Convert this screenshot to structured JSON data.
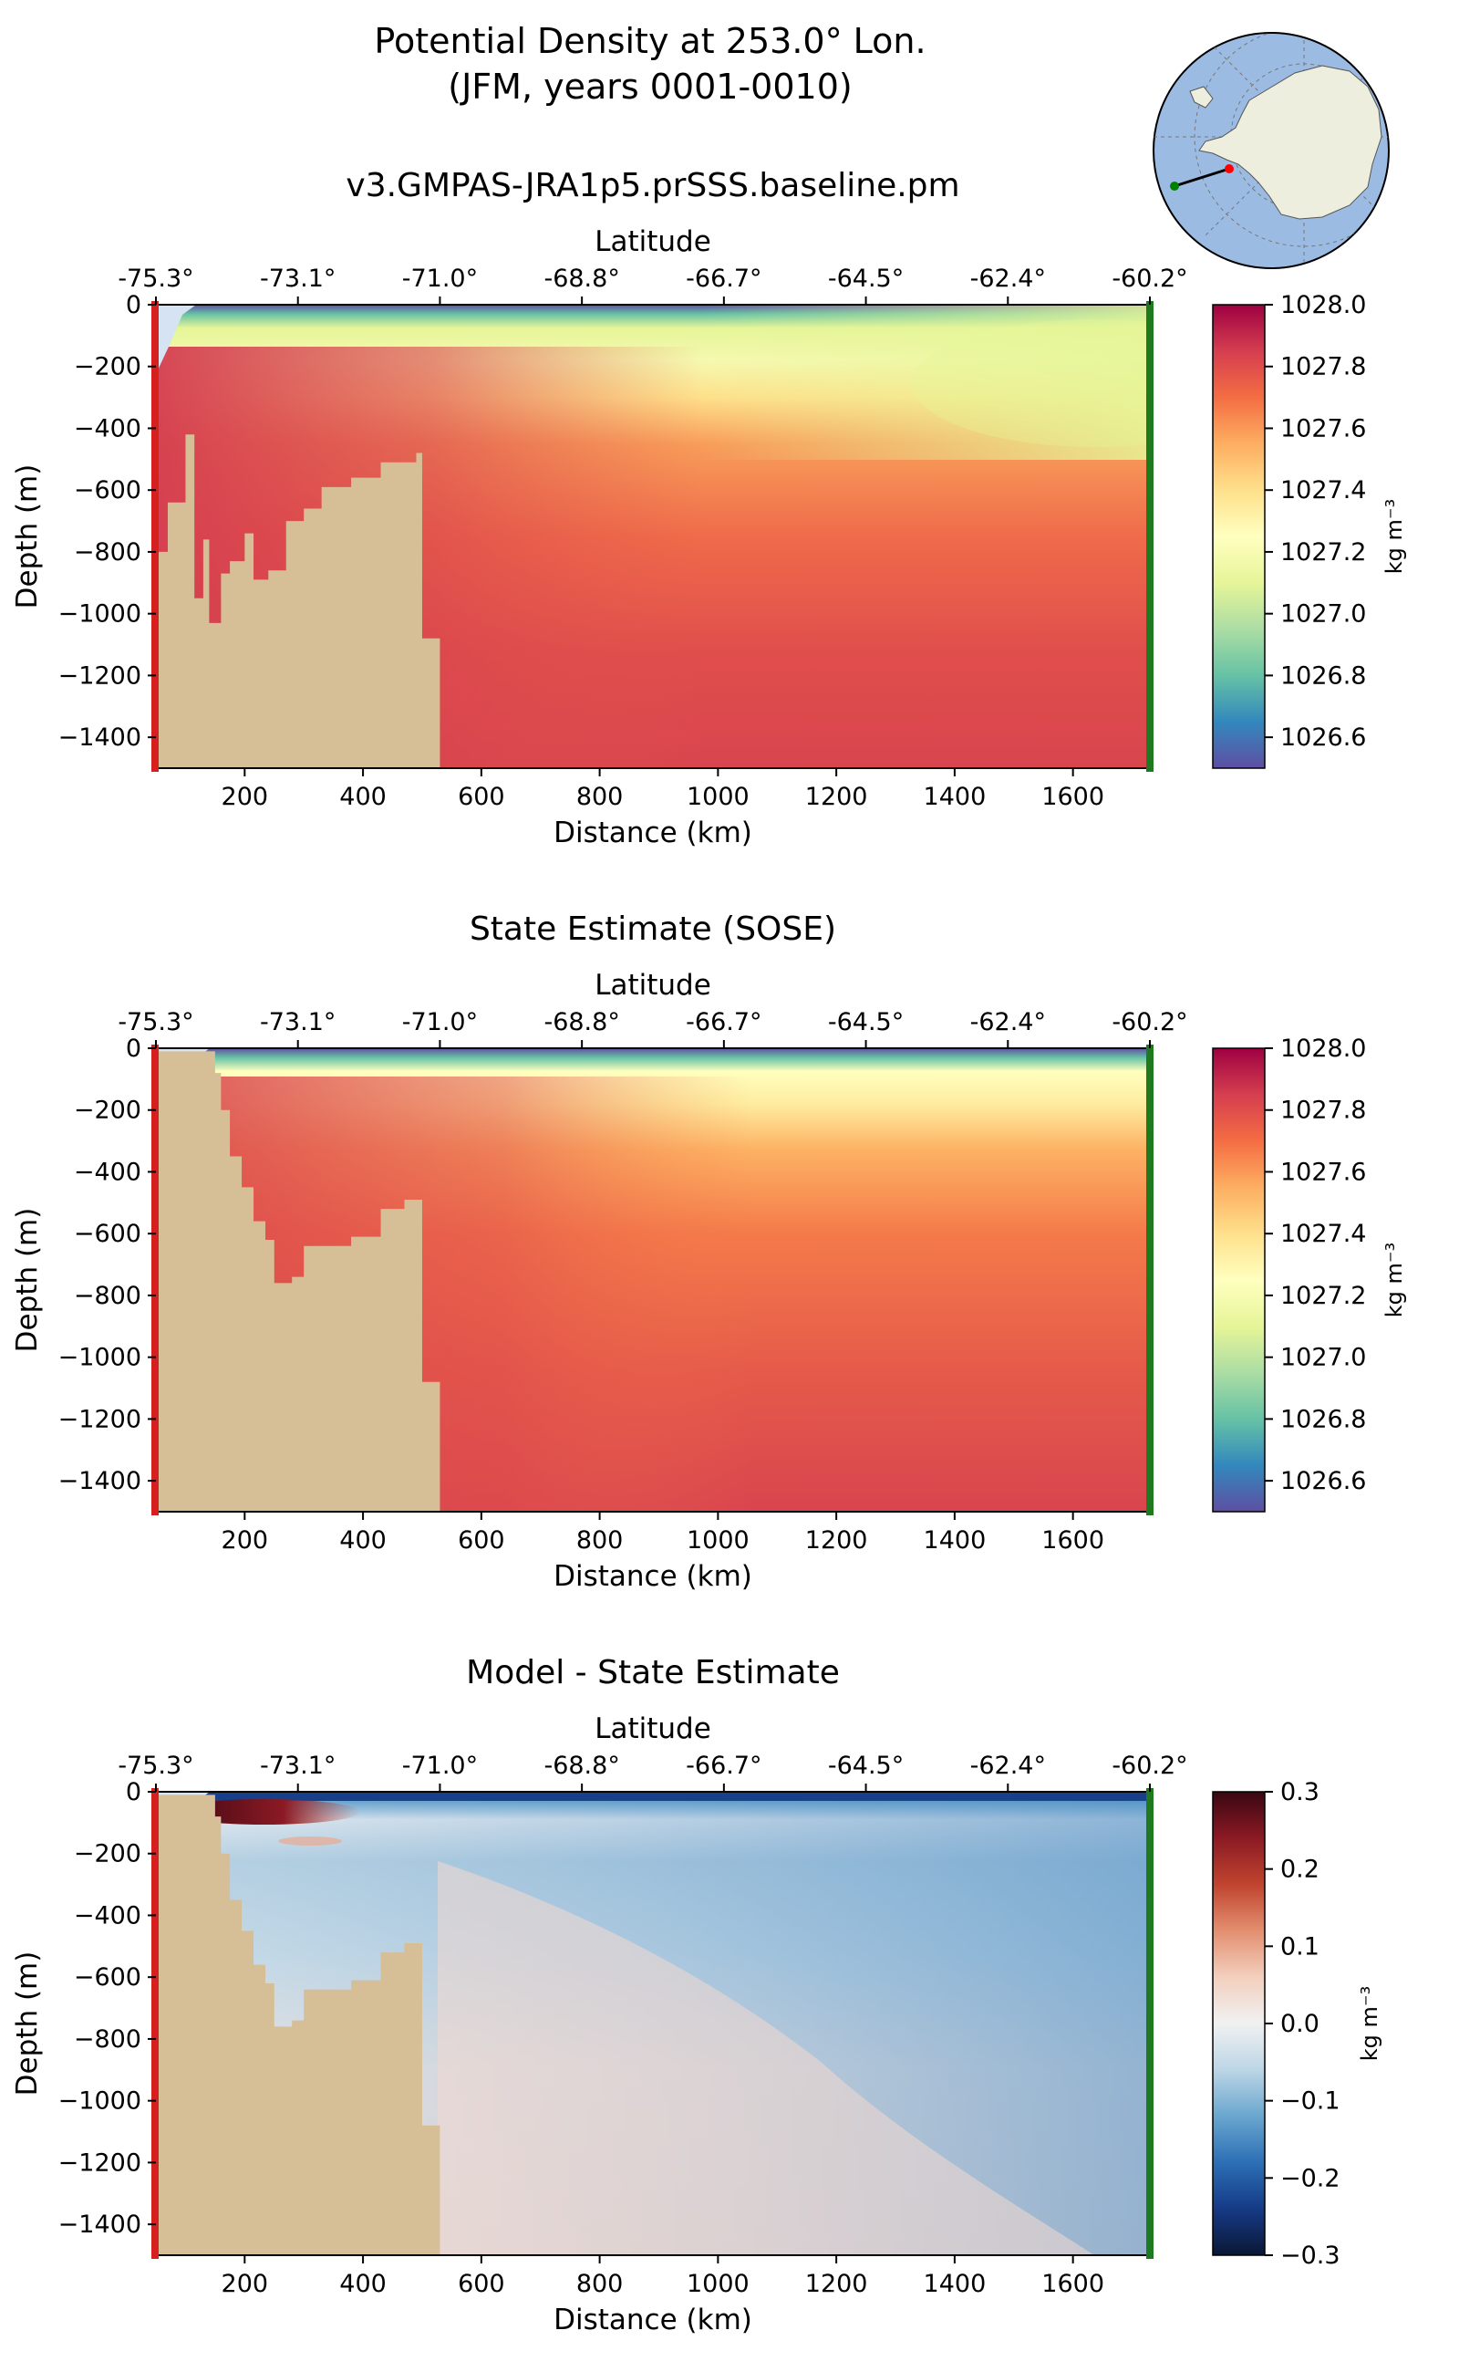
{
  "figure": {
    "title_line1": "Potential Density at 253.0° Lon.",
    "title_line2": "(JFM, years 0001-0010)"
  },
  "inset_map": {
    "description_colors": {
      "ocean": "#9bbbe3",
      "land": "#eeeede",
      "section_line": "#000000",
      "start_marker": "#ff0000",
      "end_marker": "#008000"
    }
  },
  "colors": {
    "bathymetry": "#d6bf97",
    "start_bar": "#d62020",
    "end_bar": "#1f7a1f",
    "axis": "#000000"
  },
  "chart_data": [
    {
      "type": "heatmap",
      "panel": "model",
      "title": "v3.GMPAS-JRA1p5.prSSS.baseline.pm",
      "xlabel": "Distance (km)",
      "ylabel": "Depth (m)",
      "top_xlabel": "Latitude",
      "xlim": [
        50,
        1730
      ],
      "ylim": [
        -1500,
        0
      ],
      "x_ticks": [
        200,
        400,
        600,
        800,
        1000,
        1200,
        1400,
        1600
      ],
      "y_ticks": [
        0,
        -200,
        -400,
        -600,
        -800,
        -1000,
        -1200,
        -1400
      ],
      "lat_tick_labels": [
        "-75.3°",
        "-73.1°",
        "-71.0°",
        "-68.8°",
        "-66.7°",
        "-64.5°",
        "-62.4°",
        "-60.2°"
      ],
      "lat_tick_positions_km": [
        50,
        290,
        530,
        770,
        1010,
        1250,
        1490,
        1730
      ],
      "colorbar": {
        "min": 1026.5,
        "max": 1028.0,
        "ticks": [
          1028.0,
          1027.8,
          1027.6,
          1027.4,
          1027.2,
          1027.0,
          1026.8,
          1026.6
        ],
        "label": "kg m⁻³",
        "colormap": "Spectral_r"
      },
      "bathymetry_km_depth": [
        [
          50,
          -800
        ],
        [
          70,
          -640
        ],
        [
          100,
          -420
        ],
        [
          115,
          -950
        ],
        [
          130,
          -760
        ],
        [
          140,
          -1030
        ],
        [
          160,
          -870
        ],
        [
          175,
          -830
        ],
        [
          200,
          -740
        ],
        [
          215,
          -890
        ],
        [
          240,
          -860
        ],
        [
          270,
          -700
        ],
        [
          300,
          -660
        ],
        [
          330,
          -590
        ],
        [
          380,
          -560
        ],
        [
          430,
          -510
        ],
        [
          490,
          -480
        ],
        [
          500,
          -1080
        ],
        [
          530,
          -1080
        ]
      ]
    },
    {
      "type": "heatmap",
      "panel": "sose",
      "title": "State Estimate (SOSE)",
      "xlabel": "Distance (km)",
      "ylabel": "Depth (m)",
      "top_xlabel": "Latitude",
      "xlim": [
        50,
        1730
      ],
      "ylim": [
        -1500,
        0
      ],
      "x_ticks": [
        200,
        400,
        600,
        800,
        1000,
        1200,
        1400,
        1600
      ],
      "y_ticks": [
        0,
        -200,
        -400,
        -600,
        -800,
        -1000,
        -1200,
        -1400
      ],
      "lat_tick_labels": [
        "-75.3°",
        "-73.1°",
        "-71.0°",
        "-68.8°",
        "-66.7°",
        "-64.5°",
        "-62.4°",
        "-60.2°"
      ],
      "lat_tick_positions_km": [
        50,
        290,
        530,
        770,
        1010,
        1250,
        1490,
        1730
      ],
      "colorbar": {
        "min": 1026.5,
        "max": 1028.0,
        "ticks": [
          1028.0,
          1027.8,
          1027.6,
          1027.4,
          1027.2,
          1027.0,
          1026.8,
          1026.6
        ],
        "label": "kg m⁻³",
        "colormap": "Spectral_r"
      },
      "bathymetry_km_depth": [
        [
          50,
          -10
        ],
        [
          130,
          -10
        ],
        [
          150,
          -80
        ],
        [
          160,
          -200
        ],
        [
          175,
          -350
        ],
        [
          195,
          -450
        ],
        [
          215,
          -560
        ],
        [
          235,
          -620
        ],
        [
          250,
          -760
        ],
        [
          280,
          -740
        ],
        [
          300,
          -640
        ],
        [
          330,
          -640
        ],
        [
          380,
          -610
        ],
        [
          430,
          -520
        ],
        [
          470,
          -490
        ],
        [
          500,
          -1080
        ],
        [
          530,
          -1080
        ]
      ]
    },
    {
      "type": "heatmap",
      "panel": "difference",
      "title": "Model - State Estimate",
      "xlabel": "Distance (km)",
      "ylabel": "Depth (m)",
      "top_xlabel": "Latitude",
      "xlim": [
        50,
        1730
      ],
      "ylim": [
        -1500,
        0
      ],
      "x_ticks": [
        200,
        400,
        600,
        800,
        1000,
        1200,
        1400,
        1600
      ],
      "y_ticks": [
        0,
        -200,
        -400,
        -600,
        -800,
        -1000,
        -1200,
        -1400
      ],
      "lat_tick_labels": [
        "-75.3°",
        "-73.1°",
        "-71.0°",
        "-68.8°",
        "-66.7°",
        "-64.5°",
        "-62.4°",
        "-60.2°"
      ],
      "lat_tick_positions_km": [
        50,
        290,
        530,
        770,
        1010,
        1250,
        1490,
        1730
      ],
      "colorbar": {
        "min": -0.3,
        "max": 0.3,
        "ticks": [
          0.3,
          0.2,
          0.1,
          0.0,
          -0.1,
          -0.2,
          -0.3
        ],
        "label": "kg m⁻³",
        "colormap": "RdBu_r"
      },
      "bathymetry_km_depth": [
        [
          50,
          -10
        ],
        [
          130,
          -10
        ],
        [
          150,
          -80
        ],
        [
          160,
          -200
        ],
        [
          175,
          -350
        ],
        [
          195,
          -450
        ],
        [
          215,
          -560
        ],
        [
          235,
          -620
        ],
        [
          250,
          -760
        ],
        [
          280,
          -740
        ],
        [
          300,
          -640
        ],
        [
          330,
          -640
        ],
        [
          380,
          -610
        ],
        [
          430,
          -520
        ],
        [
          470,
          -490
        ],
        [
          500,
          -1080
        ],
        [
          530,
          -1080
        ]
      ]
    }
  ]
}
